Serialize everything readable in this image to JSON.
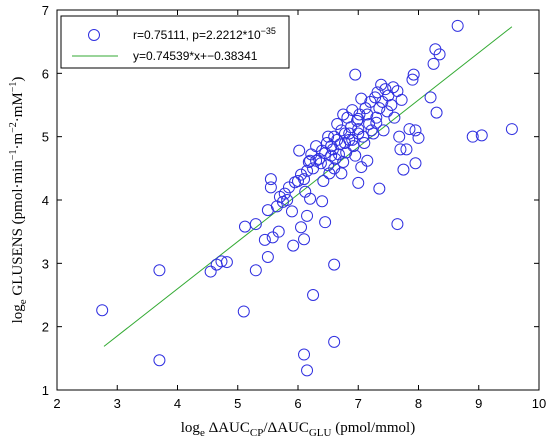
{
  "chart_data": {
    "type": "scatter",
    "title": "",
    "xlabel": {
      "prefix": "log",
      "prefix_sub": "e",
      "parts": [
        {
          "t": " ΔAUC",
          "sub": false
        },
        {
          "t": "CP",
          "sub": true
        },
        {
          "t": "/ΔAUC",
          "sub": false
        },
        {
          "t": "GLU",
          "sub": true
        },
        {
          "t": " (pmol/mmol)",
          "sub": false
        }
      ]
    },
    "ylabel": {
      "prefix": "log",
      "prefix_sub": "e",
      "parts": [
        {
          "t": " GLUSENS (pmol·min",
          "sup": ""
        },
        {
          "t": "−1",
          "sup": "y"
        },
        {
          "t": "·m",
          "sup": ""
        },
        {
          "t": "−2",
          "sup": "y"
        },
        {
          "t": "·mM",
          "sup": ""
        },
        {
          "t": "−1",
          "sup": "y"
        },
        {
          "t": ")",
          "sup": ""
        }
      ]
    },
    "xlim": [
      2,
      10
    ],
    "ylim": [
      1,
      7
    ],
    "xticks": [
      2,
      3,
      4,
      5,
      6,
      7,
      8,
      9,
      10
    ],
    "yticks": [
      1,
      2,
      3,
      4,
      5,
      6,
      7
    ],
    "grid": false,
    "legend_position": "top-left",
    "marker_color": "#3030e0",
    "line_color": "#33aa33",
    "legend": {
      "scatter_label_main": "r=0.75111, p=2.2212*10",
      "scatter_label_sup": "−35",
      "line_label": "y=0.74539*x+−0.38341"
    },
    "fit_line": {
      "slope": 0.74539,
      "intercept": -0.38341,
      "x_range": [
        2.78,
        9.55
      ]
    },
    "series": [
      {
        "name": "r=0.75111, p=2.2212*10−35",
        "points": [
          [
            2.75,
            2.26
          ],
          [
            3.7,
            2.89
          ],
          [
            3.7,
            1.47
          ],
          [
            4.55,
            2.87
          ],
          [
            4.65,
            2.98
          ],
          [
            4.73,
            3.03
          ],
          [
            4.82,
            3.02
          ],
          [
            5.1,
            2.24
          ],
          [
            5.12,
            3.58
          ],
          [
            5.3,
            3.62
          ],
          [
            5.3,
            2.89
          ],
          [
            5.45,
            3.37
          ],
          [
            5.5,
            3.84
          ],
          [
            5.55,
            4.2
          ],
          [
            5.55,
            4.33
          ],
          [
            5.5,
            3.1
          ],
          [
            5.68,
            3.5
          ],
          [
            5.58,
            3.41
          ],
          [
            5.75,
            3.97
          ],
          [
            5.78,
            4.1
          ],
          [
            5.85,
            4.2
          ],
          [
            5.9,
            3.82
          ],
          [
            5.92,
            3.28
          ],
          [
            5.95,
            4.28
          ],
          [
            6.05,
            3.57
          ],
          [
            6.05,
            4.4
          ],
          [
            6.1,
            4.33
          ],
          [
            6.1,
            3.38
          ],
          [
            6.12,
            4.13
          ],
          [
            6.15,
            4.46
          ],
          [
            6.15,
            3.75
          ],
          [
            6.18,
            4.6
          ],
          [
            6.2,
            4.02
          ],
          [
            6.22,
            4.72
          ],
          [
            6.25,
            4.5
          ],
          [
            6.1,
            1.56
          ],
          [
            6.15,
            1.31
          ],
          [
            6.25,
            2.5
          ],
          [
            6.4,
            3.98
          ],
          [
            6.45,
            3.65
          ],
          [
            6.3,
            4.85
          ],
          [
            6.35,
            4.65
          ],
          [
            6.38,
            4.58
          ],
          [
            6.42,
            4.3
          ],
          [
            6.45,
            4.74
          ],
          [
            6.48,
            4.9
          ],
          [
            6.5,
            4.55
          ],
          [
            6.52,
            4.42
          ],
          [
            6.55,
            4.7
          ],
          [
            6.55,
            4.85
          ],
          [
            6.58,
            4.8
          ],
          [
            6.6,
            5.0
          ],
          [
            6.6,
            4.5
          ],
          [
            6.62,
            4.65
          ],
          [
            6.65,
            4.95
          ],
          [
            6.65,
            5.2
          ],
          [
            6.68,
            4.72
          ],
          [
            6.7,
            4.88
          ],
          [
            6.72,
            5.1
          ],
          [
            6.72,
            4.42
          ],
          [
            6.75,
            4.6
          ],
          [
            6.78,
            5.05
          ],
          [
            6.78,
            4.9
          ],
          [
            6.8,
            4.75
          ],
          [
            6.82,
            5.3
          ],
          [
            6.85,
            4.95
          ],
          [
            6.88,
            5.15
          ],
          [
            6.9,
            5.42
          ],
          [
            6.92,
            4.85
          ],
          [
            6.95,
            4.7
          ],
          [
            6.95,
            5.98
          ],
          [
            6.98,
            5.25
          ],
          [
            7.0,
            5.05
          ],
          [
            7.02,
            5.35
          ],
          [
            7.05,
            4.52
          ],
          [
            7.05,
            5.6
          ],
          [
            7.08,
            5.0
          ],
          [
            7.1,
            4.9
          ],
          [
            7.12,
            5.45
          ],
          [
            7.15,
            4.62
          ],
          [
            7.18,
            5.2
          ],
          [
            7.2,
            5.55
          ],
          [
            7.22,
            5.1
          ],
          [
            7.25,
            5.05
          ],
          [
            7.28,
            5.62
          ],
          [
            7.3,
            5.3
          ],
          [
            7.32,
            5.7
          ],
          [
            7.35,
            5.45
          ],
          [
            7.38,
            5.82
          ],
          [
            7.4,
            5.55
          ],
          [
            7.42,
            5.1
          ],
          [
            7.45,
            5.75
          ],
          [
            7.48,
            5.4
          ],
          [
            7.5,
            5.65
          ],
          [
            7.55,
            5.5
          ],
          [
            7.58,
            5.78
          ],
          [
            7.6,
            5.3
          ],
          [
            7.65,
            5.72
          ],
          [
            7.68,
            5.0
          ],
          [
            7.7,
            4.8
          ],
          [
            7.72,
            5.58
          ],
          [
            7.75,
            4.48
          ],
          [
            7.35,
            4.18
          ],
          [
            7.65,
            3.62
          ],
          [
            6.6,
            1.76
          ],
          [
            6.6,
            2.98
          ],
          [
            7.0,
            4.27
          ],
          [
            7.8,
            4.8
          ],
          [
            7.85,
            5.12
          ],
          [
            7.9,
            5.9
          ],
          [
            7.92,
            5.98
          ],
          [
            7.95,
            5.1
          ],
          [
            8.0,
            4.98
          ],
          [
            8.2,
            5.62
          ],
          [
            8.25,
            6.15
          ],
          [
            8.28,
            6.38
          ],
          [
            8.3,
            5.38
          ],
          [
            8.35,
            6.3
          ],
          [
            8.65,
            6.75
          ],
          [
            8.9,
            5.0
          ],
          [
            9.05,
            5.02
          ],
          [
            9.55,
            5.12
          ],
          [
            7.95,
            4.58
          ],
          [
            6.9,
            4.95
          ],
          [
            6.75,
            5.35
          ],
          [
            6.5,
            5.0
          ],
          [
            6.3,
            4.62
          ],
          [
            6.0,
            4.3
          ],
          [
            5.82,
            4.0
          ],
          [
            5.7,
            4.05
          ],
          [
            5.65,
            3.9
          ],
          [
            6.02,
            4.78
          ],
          [
            6.2,
            4.62
          ],
          [
            6.4,
            4.78
          ],
          [
            7.0,
            5.28
          ],
          [
            7.15,
            5.35
          ],
          [
            7.3,
            5.22
          ],
          [
            7.0,
            5.12
          ],
          [
            6.85,
            5.05
          ]
        ]
      }
    ]
  }
}
